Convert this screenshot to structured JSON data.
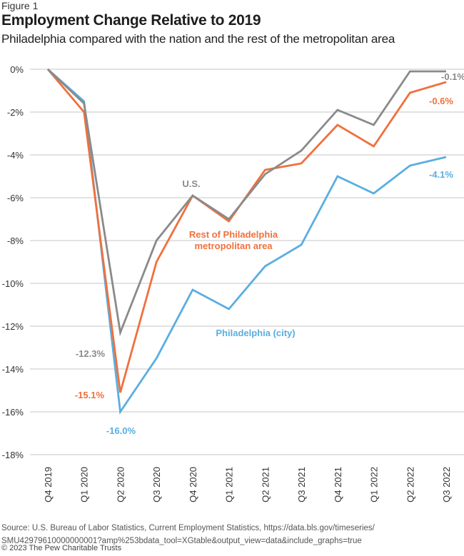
{
  "figure_label": "Figure 1",
  "title": "Employment Change Relative to 2019",
  "subtitle": "Philadelphia compared with the nation and the rest of the metropolitan area",
  "source": "Source: U.S. Bureau of Labor Statistics, Current Employment Statistics, https://data.bls.gov/timeseries/SMU42979610000000001?amp%253bdata_tool=XGtable&output_view=data&include_graphs=true",
  "source_line1": "Source: U.S. Bureau of Labor Statistics, Current Employment Statistics, https://data.bls.gov/timeseries/",
  "source_line2": "SMU42979610000000001?amp%253bdata_tool=XGtable&output_view=data&include_graphs=true",
  "copyright": "© 2023 The Pew Charitable Trusts",
  "chart_data": {
    "type": "line",
    "title": "Employment Change Relative to 2019",
    "subtitle": "Philadelphia compared with the nation and the rest of the metropolitan area",
    "xlabel": "",
    "ylabel": "",
    "categories": [
      "Q4 2019",
      "Q1 2020",
      "Q2 2020",
      "Q3 2020",
      "Q4 2020",
      "Q1 2021",
      "Q2 2021",
      "Q3 2021",
      "Q4 2021",
      "Q1 2022",
      "Q2 2022",
      "Q3 2022"
    ],
    "ylim": [
      -18,
      0
    ],
    "yticks": [
      0,
      -2,
      -4,
      -6,
      -8,
      -10,
      -12,
      -14,
      -16,
      -18
    ],
    "ytick_labels": [
      "0%",
      "-2%",
      "-4%",
      "-6%",
      "-8%",
      "-10%",
      "-12%",
      "-14%",
      "-16%",
      "-18%"
    ],
    "grid": true,
    "legend": "none (direct labels)",
    "series": [
      {
        "name": "U.S.",
        "label": "U.S.",
        "color": "#8a8a8a",
        "values": [
          0,
          -1.6,
          -12.3,
          -8.0,
          -5.9,
          -7.0,
          -4.9,
          -3.8,
          -1.9,
          -2.6,
          -0.1,
          -0.1
        ],
        "annotations": [
          {
            "index": 2,
            "text": "-12.3%"
          },
          {
            "index": 11,
            "text": "-0.1%"
          }
        ]
      },
      {
        "name": "Rest of Philadelphia metropolitan area",
        "label_line1": "Rest of Philadelphia",
        "label_line2": "metropolitan area",
        "color": "#f0703c",
        "values": [
          0,
          -2.0,
          -15.1,
          -9.0,
          -5.9,
          -7.1,
          -4.7,
          -4.4,
          -2.6,
          -3.6,
          -1.1,
          -0.6
        ],
        "annotations": [
          {
            "index": 2,
            "text": "-15.1%"
          },
          {
            "index": 11,
            "text": "-0.6%"
          }
        ]
      },
      {
        "name": "Philadelphia (city)",
        "label": "Philadelphia (city)",
        "color": "#5aaee0",
        "values": [
          0,
          -1.5,
          -16.0,
          -13.5,
          -10.3,
          -11.2,
          -9.2,
          -8.2,
          -5.0,
          -5.8,
          -4.5,
          -4.1
        ],
        "annotations": [
          {
            "index": 2,
            "text": "-16.0%"
          },
          {
            "index": 11,
            "text": "-4.1%"
          }
        ]
      }
    ]
  }
}
